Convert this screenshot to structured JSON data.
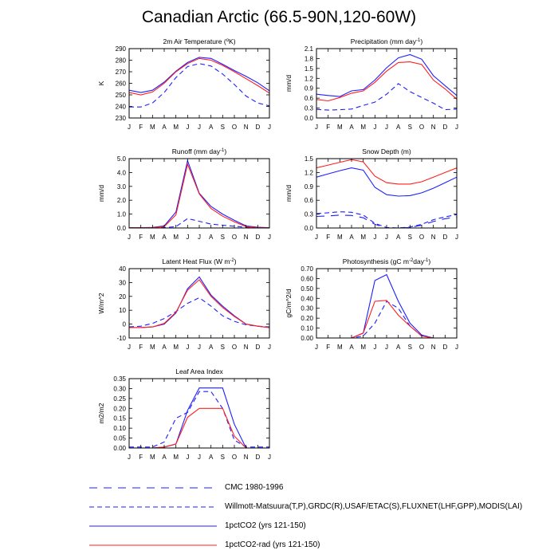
{
  "title": "Canadian Arctic (66.5-90N,120-60W)",
  "months": [
    "J",
    "F",
    "M",
    "A",
    "M",
    "J",
    "J",
    "A",
    "S",
    "O",
    "N",
    "D",
    "J"
  ],
  "colors": {
    "blue": "#1f1fff",
    "red": "#ff1f1f"
  },
  "legend": [
    {
      "label": "CMC 1980-1996",
      "color": "#1f1fff",
      "dash": "long"
    },
    {
      "label": "Willmott-Matsuura(T,P),GRDC(R),USAF/ETAC(S),FLUXNET(LHF,GPP),MODIS(LAI)",
      "color": "#1f1fff",
      "dash": "dash"
    },
    {
      "label": "1pctCO2 (yrs 121-150)",
      "color": "#1f1fff",
      "dash": "solid"
    },
    {
      "label": "1pctCO2-rad (yrs 121-150)",
      "color": "#ff1f1f",
      "dash": "solid"
    }
  ],
  "chart_data": [
    {
      "type": "line",
      "title_main": "2m Air Temperature (",
      "title_sup": "o",
      "title_end": "K)",
      "ylabel": "K",
      "ylim": [
        230,
        290
      ],
      "yticks": [
        "230",
        "240",
        "250",
        "260",
        "270",
        "280",
        "290"
      ],
      "ytick_values": [
        230,
        240,
        250,
        260,
        270,
        280,
        290
      ],
      "series": [
        {
          "name": "Willmott-Matsuura(T,P),GRDC(R),USAF/ETAC(S),FLUXNET(LHF,GPP),MODIS(LAI)",
          "style": "dash",
          "color": "#1f1fff",
          "values": [
            239.5,
            239.5,
            243,
            252,
            265,
            274.5,
            277,
            275,
            268,
            259,
            249,
            243,
            240.5
          ]
        },
        {
          "name": "1pctCO2 (yrs 121-150)",
          "style": "solid",
          "color": "#1f1fff",
          "values": [
            254,
            252,
            254,
            261,
            270.5,
            278,
            282.5,
            281.5,
            276.5,
            271,
            266,
            260.5,
            253.5
          ]
        },
        {
          "name": "1pctCO2-rad (yrs 121-150)",
          "style": "solid",
          "color": "#ff1f1f",
          "values": [
            252,
            250,
            252.5,
            260,
            270,
            277,
            281.5,
            280,
            275.5,
            270,
            264,
            258,
            251.5
          ]
        }
      ]
    },
    {
      "type": "line",
      "title_main": "Precipitation (mm day",
      "title_sup": "-1",
      "title_end": ")",
      "ylabel": "mm/d",
      "ylim": [
        0.0,
        2.1
      ],
      "yticks": [
        "0.0",
        "0.3",
        "0.6",
        "0.9",
        "1.2",
        "1.5",
        "1.8",
        "2.1"
      ],
      "ytick_values": [
        0.0,
        0.3,
        0.6,
        0.9,
        1.2,
        1.5,
        1.8,
        2.1
      ],
      "series": [
        {
          "name": "Willmott-Matsuura(T,P),GRDC(R),USAF/ETAC(S),FLUXNET(LHF,GPP),MODIS(LAI)",
          "style": "dash",
          "color": "#1f1fff",
          "values": [
            0.26,
            0.24,
            0.25,
            0.27,
            0.38,
            0.48,
            0.72,
            1.04,
            0.8,
            0.62,
            0.45,
            0.25,
            0.27
          ]
        },
        {
          "name": "1pctCO2 (yrs 121-150)",
          "style": "solid",
          "color": "#1f1fff",
          "values": [
            0.72,
            0.68,
            0.65,
            0.82,
            0.86,
            1.15,
            1.52,
            1.82,
            1.92,
            1.78,
            1.28,
            0.98,
            0.68
          ]
        },
        {
          "name": "1pctCO2-rad (yrs 121-150)",
          "style": "solid",
          "color": "#ff1f1f",
          "values": [
            0.56,
            0.52,
            0.62,
            0.75,
            0.82,
            1.08,
            1.42,
            1.68,
            1.7,
            1.62,
            1.15,
            0.88,
            0.57
          ]
        }
      ]
    },
    {
      "type": "line",
      "title_main": "Runoff (mm day",
      "title_sup": "-1",
      "title_end": ")",
      "ylabel": "mm/d",
      "ylim": [
        0.0,
        5.0
      ],
      "yticks": [
        "0.0",
        "1.0",
        "2.0",
        "3.0",
        "4.0",
        "5.0"
      ],
      "ytick_values": [
        0.0,
        1.0,
        2.0,
        3.0,
        4.0,
        5.0
      ],
      "series": [
        {
          "name": "Willmott-Matsuura(T,P),GRDC(R),USAF/ETAC(S),FLUXNET(LHF,GPP),MODIS(LAI)",
          "style": "dash",
          "color": "#1f1fff",
          "values": [
            0.02,
            0.02,
            0.02,
            0.03,
            0.1,
            0.68,
            0.48,
            0.28,
            0.2,
            0.12,
            0.05,
            0.03,
            0.02
          ]
        },
        {
          "name": "1pctCO2 (yrs 121-150)",
          "style": "solid",
          "color": "#1f1fff",
          "values": [
            0.02,
            0.02,
            0.04,
            0.15,
            1.15,
            4.85,
            2.5,
            1.55,
            1.0,
            0.55,
            0.15,
            0.05,
            0.02
          ]
        },
        {
          "name": "1pctCO2-rad (yrs 121-150)",
          "style": "solid",
          "color": "#ff1f1f",
          "values": [
            0.02,
            0.02,
            0.03,
            0.1,
            0.95,
            4.6,
            2.45,
            1.4,
            0.85,
            0.45,
            0.1,
            0.03,
            0.02
          ]
        }
      ]
    },
    {
      "type": "line",
      "title_main": "Snow Depth (m)",
      "title_sup": "",
      "title_end": "",
      "ylabel": "mm/d",
      "ylim": [
        0.0,
        1.5
      ],
      "yticks": [
        "0.0",
        "0.3",
        "0.6",
        "0.9",
        "1.2",
        "1.5"
      ],
      "ytick_values": [
        0.0,
        0.3,
        0.6,
        0.9,
        1.2,
        1.5
      ],
      "series": [
        {
          "name": "CMC 1980-1996",
          "style": "long",
          "color": "#1f1fff",
          "values": [
            0.25,
            0.26,
            0.28,
            0.27,
            0.22,
            0.08,
            0.0,
            0.0,
            0.01,
            0.06,
            0.14,
            0.2,
            0.24
          ]
        },
        {
          "name": "USAF/ETAC",
          "style": "dash",
          "color": "#1f1fff",
          "values": [
            0.31,
            0.33,
            0.35,
            0.34,
            0.28,
            0.1,
            0.01,
            0.0,
            0.02,
            0.08,
            0.18,
            0.24,
            0.29
          ]
        },
        {
          "name": "1pctCO2 (yrs 121-150)",
          "style": "solid",
          "color": "#1f1fff",
          "values": [
            1.1,
            1.17,
            1.24,
            1.3,
            1.25,
            0.88,
            0.72,
            0.69,
            0.7,
            0.76,
            0.86,
            0.98,
            1.1
          ]
        },
        {
          "name": "1pctCO2-rad (yrs 121-150)",
          "style": "solid",
          "color": "#ff1f1f",
          "values": [
            1.3,
            1.36,
            1.42,
            1.48,
            1.43,
            1.12,
            0.98,
            0.95,
            0.95,
            1.0,
            1.1,
            1.2,
            1.3
          ]
        }
      ]
    },
    {
      "type": "line",
      "title_main": "Latent Heat Flux (W m",
      "title_sup": "-2",
      "title_end": ")",
      "ylabel": "W/m^2",
      "ylim": [
        -10,
        40
      ],
      "yticks": [
        "-10",
        "0",
        "10",
        "20",
        "30",
        "40"
      ],
      "ytick_values": [
        -10,
        0,
        10,
        20,
        30,
        40
      ],
      "series": [
        {
          "name": "Willmott-Matsuura(T,P),GRDC(R),USAF/ETAC(S),FLUXNET(LHF,GPP),MODIS(LAI)",
          "style": "dash",
          "color": "#1f1fff",
          "values": [
            -2,
            -1.5,
            0.5,
            4,
            9,
            15,
            19,
            13,
            6,
            2,
            -0.5,
            -1.5,
            -2
          ]
        },
        {
          "name": "1pctCO2 (yrs 121-150)",
          "style": "solid",
          "color": "#1f1fff",
          "values": [
            -2.5,
            -2.5,
            -2,
            0,
            8,
            25.5,
            34,
            21,
            13,
            6,
            0,
            -1.5,
            -2.5
          ]
        },
        {
          "name": "1pctCO2-rad (yrs 121-150)",
          "style": "solid",
          "color": "#ff1f1f",
          "values": [
            -2.5,
            -2.5,
            -2,
            0.5,
            8.5,
            24.5,
            32,
            20,
            12,
            5.5,
            0,
            -1.5,
            -2.5
          ]
        }
      ]
    },
    {
      "type": "line",
      "title_main": "Photosynthesis (gC m",
      "title_sup": "-2",
      "title_end": "day",
      "title_sup2": "-1",
      "title_end2": ")",
      "ylabel": "gC/m^2/d",
      "ylim": [
        0.0,
        0.7
      ],
      "yticks": [
        "0.00",
        "0.10",
        "0.20",
        "0.30",
        "0.40",
        "0.50",
        "0.60",
        "0.70"
      ],
      "ytick_values": [
        0.0,
        0.1,
        0.2,
        0.3,
        0.4,
        0.5,
        0.6,
        0.7
      ],
      "series": [
        {
          "name": "Willmott-Matsuura(T,P),GRDC(R),USAF/ETAC(S),FLUXNET(LHF,GPP),MODIS(LAI)",
          "style": "dash",
          "color": "#1f1fff",
          "values": [
            0.0,
            0.0,
            0.0,
            0.0,
            0.02,
            0.15,
            0.37,
            0.3,
            0.12,
            0.02,
            0.0,
            0.0,
            0.0
          ]
        },
        {
          "name": "1pctCO2 (yrs 121-150)",
          "style": "solid",
          "color": "#1f1fff",
          "values": [
            0.0,
            0.0,
            0.0,
            0.0,
            0.05,
            0.58,
            0.64,
            0.37,
            0.15,
            0.03,
            0.0,
            0.0,
            0.0
          ]
        },
        {
          "name": "1pctCO2-rad (yrs 121-150)",
          "style": "solid",
          "color": "#ff1f1f",
          "values": [
            0.0,
            0.0,
            0.0,
            0.0,
            0.05,
            0.37,
            0.38,
            0.23,
            0.12,
            0.02,
            0.0,
            0.0,
            0.0
          ]
        }
      ]
    },
    {
      "type": "line",
      "title_main": "Leaf Area Index",
      "title_sup": "",
      "title_end": "",
      "ylabel": "m2/m2",
      "ylim": [
        0.0,
        0.35
      ],
      "yticks": [
        "0.00",
        "0.05",
        "0.10",
        "0.15",
        "0.20",
        "0.25",
        "0.30",
        "0.35"
      ],
      "ytick_values": [
        0.0,
        0.05,
        0.1,
        0.15,
        0.2,
        0.25,
        0.3,
        0.35
      ],
      "series": [
        {
          "name": "Willmott-Matsuura(T,P),GRDC(R),USAF/ETAC(S),FLUXNET(LHF,GPP),MODIS(LAI)",
          "style": "dash",
          "color": "#1f1fff",
          "values": [
            0.005,
            0.005,
            0.005,
            0.03,
            0.15,
            0.18,
            0.285,
            0.285,
            0.2,
            0.04,
            0.005,
            0.005,
            0.005
          ]
        },
        {
          "name": "1pctCO2 (yrs 121-150)",
          "style": "solid",
          "color": "#1f1fff",
          "values": [
            0.0,
            0.0,
            0.0,
            0.005,
            0.02,
            0.19,
            0.303,
            0.303,
            0.303,
            0.12,
            0.0,
            0.0,
            0.0
          ]
        },
        {
          "name": "1pctCO2-rad (yrs 121-150)",
          "style": "solid",
          "color": "#ff1f1f",
          "values": [
            0.0,
            0.0,
            0.0,
            0.005,
            0.02,
            0.155,
            0.2,
            0.2,
            0.2,
            0.06,
            0.0,
            0.0,
            0.0
          ]
        }
      ]
    }
  ]
}
